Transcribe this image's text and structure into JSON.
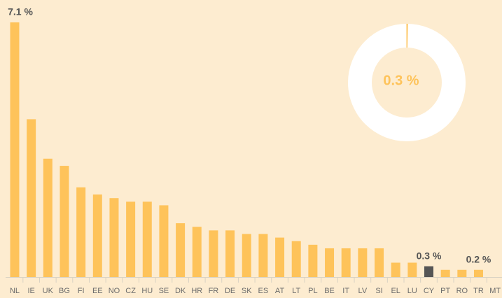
{
  "chart_data": {
    "type": "bar",
    "categories": [
      "NL",
      "IE",
      "UK",
      "BG",
      "FI",
      "EE",
      "NO",
      "CZ",
      "HU",
      "SE",
      "DK",
      "HR",
      "FR",
      "DE",
      "SK",
      "ES",
      "AT",
      "LT",
      "PL",
      "BE",
      "IT",
      "LV",
      "SI",
      "EL",
      "LU",
      "CY",
      "PT",
      "RO",
      "TR",
      "MT"
    ],
    "values": [
      7.1,
      4.4,
      3.3,
      3.1,
      2.5,
      2.3,
      2.2,
      2.1,
      2.1,
      2.0,
      1.5,
      1.4,
      1.3,
      1.3,
      1.2,
      1.2,
      1.1,
      1.0,
      0.9,
      0.8,
      0.8,
      0.8,
      0.8,
      0.4,
      0.4,
      0.3,
      0.2,
      0.2,
      0.2,
      0
    ],
    "value_labels": [
      "7.1 %",
      null,
      null,
      null,
      null,
      null,
      null,
      null,
      null,
      null,
      null,
      null,
      null,
      null,
      null,
      null,
      null,
      null,
      null,
      null,
      null,
      null,
      null,
      null,
      null,
      "0.3 %",
      null,
      null,
      "0.2 %",
      null
    ],
    "color": "#fec35a",
    "highlight_category": "CY",
    "highlight_color": "#555555",
    "ylim": [
      0,
      7.1
    ],
    "donut": {
      "value": 0.3,
      "label": "0.3 %",
      "color": "#fec35a",
      "ring_color": "#ffffff"
    }
  }
}
